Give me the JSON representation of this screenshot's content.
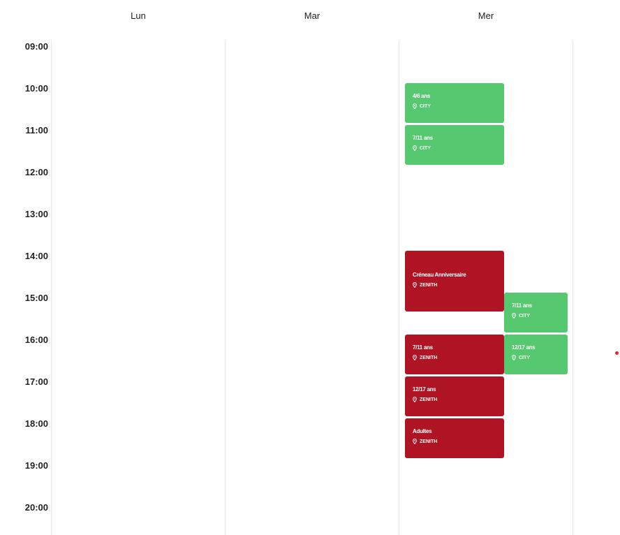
{
  "days": [
    {
      "label": "Lun"
    },
    {
      "label": "Mar"
    },
    {
      "label": "Mer"
    }
  ],
  "hours": [
    "09:00",
    "10:00",
    "11:00",
    "12:00",
    "13:00",
    "14:00",
    "15:00",
    "16:00",
    "17:00",
    "18:00",
    "19:00",
    "20:00"
  ],
  "events": [
    {
      "title": "4/6 ans",
      "location": "CITY",
      "day": "Mer",
      "color": "#56c870"
    },
    {
      "title": "7/11 ans",
      "location": "CITY",
      "day": "Mer",
      "color": "#56c870"
    },
    {
      "title": "Créneau Anniversaire",
      "location": "ZENITH",
      "day": "Mer",
      "color": "#ae1423"
    },
    {
      "title": "7/11 ans",
      "location": "CITY",
      "day": "Mer",
      "color": "#56c870"
    },
    {
      "title": "7/11 ans",
      "location": "ZENITH",
      "day": "Mer",
      "color": "#ae1423"
    },
    {
      "title": "12/17 ans",
      "location": "CITY",
      "day": "Mer",
      "color": "#56c870"
    },
    {
      "title": "12/17 ans",
      "location": "ZENITH",
      "day": "Mer",
      "color": "#ae1423"
    },
    {
      "title": "Adultes",
      "location": "ZENITH",
      "day": "Mer",
      "color": "#ae1423"
    }
  ],
  "icons": {
    "location": "map-pin-icon"
  },
  "colors": {
    "city": "#56c870",
    "zenith": "#ae1423",
    "now_indicator": "#d0312d"
  }
}
